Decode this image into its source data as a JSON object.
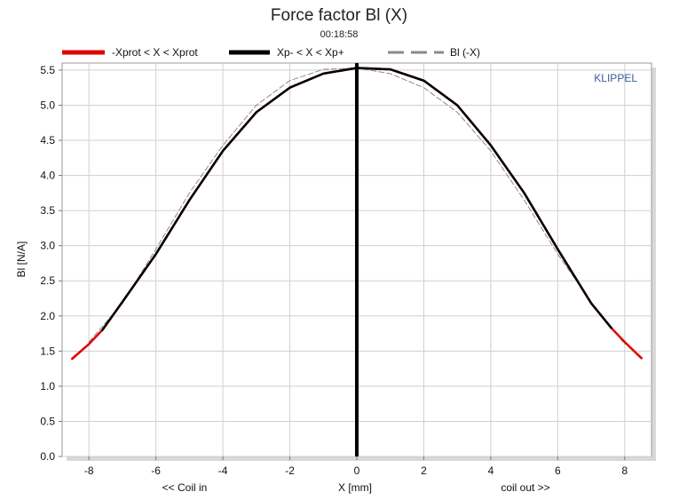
{
  "chart_data": {
    "type": "line",
    "title": "Force factor Bl (X)",
    "subtitle": "00:18:58",
    "xlabel": "X [mm]",
    "ylabel": "Bl [N/A]",
    "x_left_note": "<< Coil in",
    "x_right_note": "coil out >>",
    "watermark": "KLIPPEL",
    "xlim": [
      -8.8,
      8.8
    ],
    "ylim": [
      0,
      5.6
    ],
    "xticks": [
      -8,
      -6,
      -4,
      -2,
      0,
      2,
      4,
      6,
      8
    ],
    "yticks": [
      0.0,
      0.5,
      1.0,
      1.5,
      2.0,
      2.5,
      3.0,
      3.5,
      4.0,
      4.5,
      5.0,
      5.5
    ],
    "xtick_labels": [
      "-8",
      "-6",
      "-4",
      "-2",
      "0",
      "2",
      "4",
      "6",
      "8"
    ],
    "ytick_labels": [
      "0.0",
      "0.5",
      "1.0",
      "1.5",
      "2.0",
      "2.5",
      "3.0",
      "3.5",
      "4.0",
      "4.5",
      "5.0",
      "5.5"
    ],
    "grid": true,
    "legend_position": "top",
    "vertical_marker_x": 0,
    "series": [
      {
        "name": "-Xprot < X < Xprot",
        "color": "#e00000",
        "style": "solid",
        "x": [
          -8.5,
          -8.0,
          -7.6,
          -7.0,
          -6.0,
          -5.0,
          -4.0,
          -3.0,
          -2.0,
          -1.0,
          0.0,
          1.0,
          2.0,
          3.0,
          4.0,
          5.0,
          6.0,
          7.0,
          7.6,
          8.0,
          8.5
        ],
        "y": [
          1.39,
          1.6,
          1.8,
          2.2,
          2.88,
          3.65,
          4.35,
          4.9,
          5.25,
          5.45,
          5.53,
          5.51,
          5.35,
          5.0,
          4.43,
          3.75,
          2.95,
          2.18,
          1.83,
          1.63,
          1.4
        ]
      },
      {
        "name": "Xp- < X < Xp+",
        "color": "#000000",
        "style": "solid",
        "x": [
          -7.6,
          -7.0,
          -6.0,
          -5.0,
          -4.0,
          -3.0,
          -2.0,
          -1.0,
          0.0,
          1.0,
          2.0,
          3.0,
          4.0,
          5.0,
          6.0,
          7.0,
          7.6
        ],
        "y": [
          1.8,
          2.2,
          2.88,
          3.65,
          4.35,
          4.9,
          5.25,
          5.45,
          5.53,
          5.51,
          5.35,
          5.0,
          4.43,
          3.75,
          2.95,
          2.18,
          1.83
        ]
      },
      {
        "name": "Bl (-X)",
        "color": "#8a8a8a",
        "style": "dashed",
        "x": [
          -8.0,
          -7.0,
          -6.0,
          -5.0,
          -4.0,
          -3.0,
          -2.0,
          -1.0,
          0.0,
          1.0,
          2.0,
          3.0,
          4.0,
          5.0,
          6.0,
          7.0,
          8.0
        ],
        "y": [
          1.63,
          2.18,
          2.95,
          3.75,
          4.43,
          5.0,
          5.35,
          5.51,
          5.53,
          5.45,
          5.25,
          4.9,
          4.35,
          3.65,
          2.88,
          2.2,
          1.6
        ]
      }
    ]
  }
}
